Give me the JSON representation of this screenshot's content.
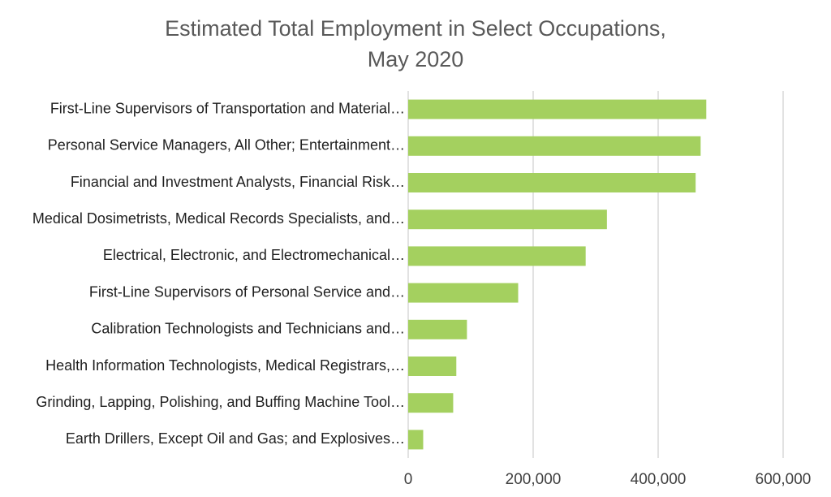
{
  "chart_data": {
    "type": "bar",
    "orientation": "horizontal",
    "title_lines": [
      "Estimated Total Employment in Select Occupations,",
      "May 2020"
    ],
    "categories": [
      "First-Line Supervisors of Transportation and Material…",
      "Personal Service Managers, All Other; Entertainment…",
      "Financial and Investment Analysts, Financial Risk…",
      "Medical Dosimetrists, Medical Records Specialists, and…",
      "Electrical, Electronic, and Electromechanical…",
      "First-Line Supervisors of Personal Service and…",
      "Calibration Technologists and Technicians and…",
      "Health Information Technologists, Medical Registrars,…",
      "Grinding, Lapping, Polishing, and Buffing Machine Tool…",
      "Earth Drillers, Except Oil and Gas; and Explosives…"
    ],
    "values": [
      477000,
      468000,
      460000,
      318000,
      284000,
      176000,
      94000,
      77000,
      72000,
      24000
    ],
    "xlim": [
      0,
      600000
    ],
    "ticks": [
      0,
      200000,
      400000,
      600000
    ],
    "tick_labels": [
      "0",
      "200,000",
      "400,000",
      "600,000"
    ],
    "grid": true,
    "legend": "none",
    "bar_color": "#a4d05f"
  }
}
